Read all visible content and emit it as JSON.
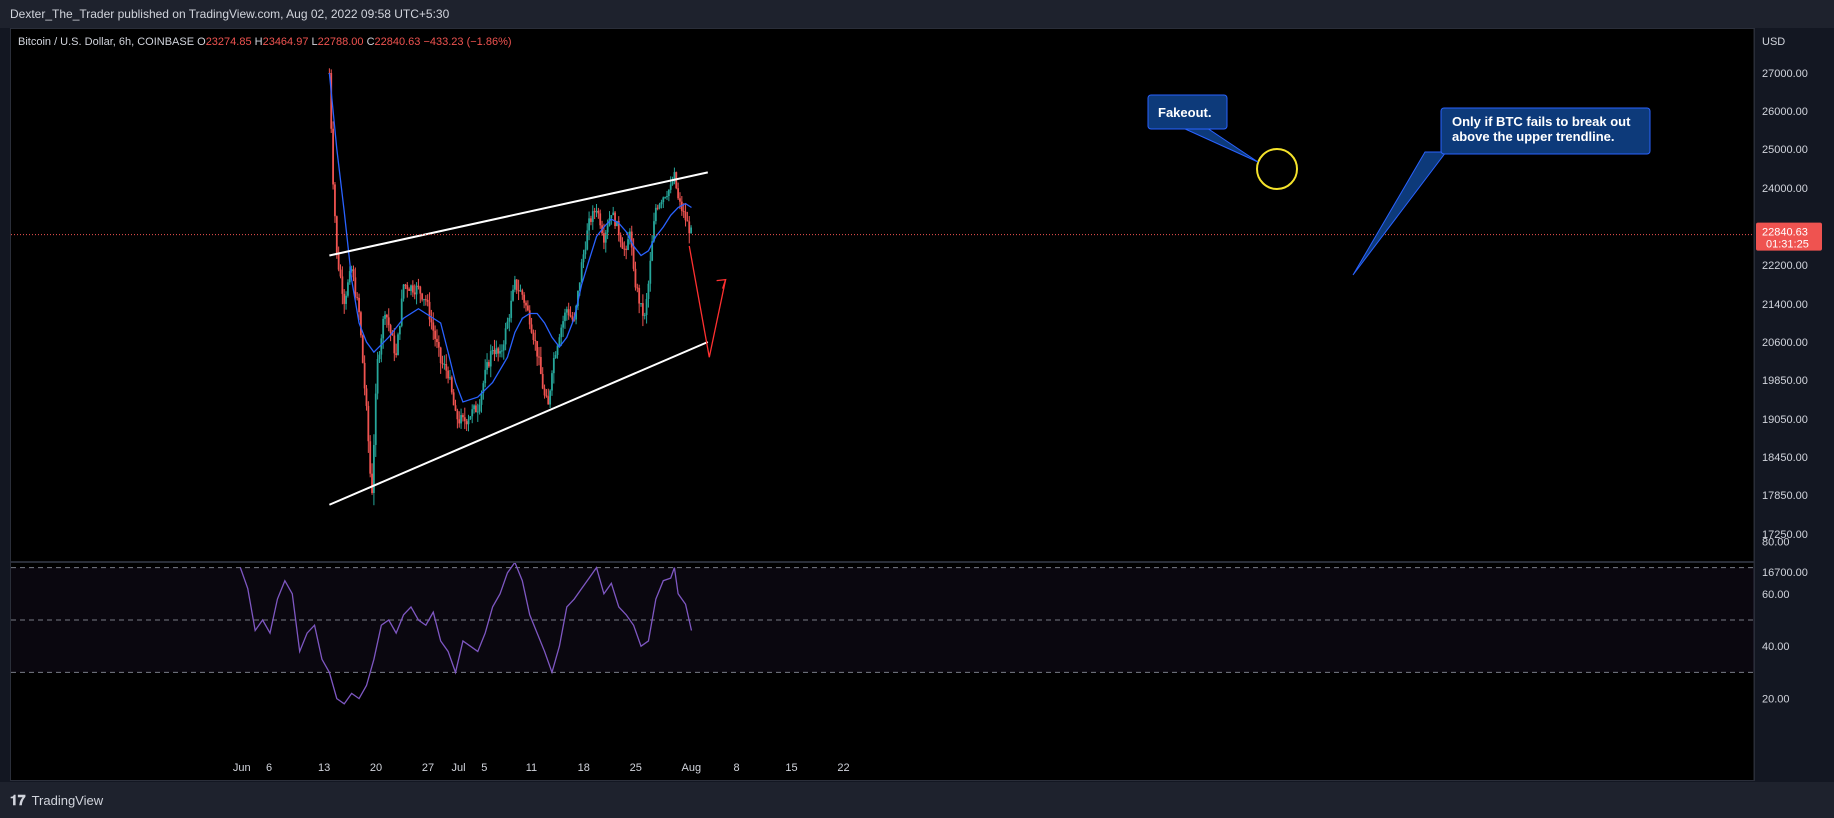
{
  "header": {
    "published": "Dexter_The_Trader published on TradingView.com, Aug 02, 2022 09:58 UTC+5:30"
  },
  "footer": {
    "brand": "TradingView",
    "logo_icon": "tradingview-logo-icon"
  },
  "symbol": {
    "name": "Bitcoin / U.S. Dollar, 6h, COINBASE",
    "o_label": "O",
    "o_value": "23274.85",
    "h_label": "H",
    "h_value": "23464.97",
    "l_label": "L",
    "l_value": "22788.00",
    "c_label": "C",
    "c_value": "22840.63",
    "change": "−433.23 (−1.86%)"
  },
  "price_tag": {
    "value": "22840.63",
    "countdown": "01:31:25"
  },
  "currency": "USD",
  "colors": {
    "up": "#26a69a",
    "down": "#ef5350",
    "ma": "#2962ff",
    "rsi": "#7e57c2",
    "trend": "#ffffff",
    "projection": "#ff3030",
    "callout": "#0d3a7a",
    "circle": "#f5e32b"
  },
  "annotations": {
    "fakeout": "Fakeout.",
    "note_line1": "Only if BTC fails to break out",
    "note_line2": "above the upper trendline."
  },
  "chart_data": [
    {
      "type": "candlestick",
      "title": "Bitcoin / U.S. Dollar, 6h, COINBASE",
      "y_axis_labels": [
        "27000.00",
        "26000.00",
        "25000.00",
        "24000.00",
        "23000.00",
        "22200.00",
        "21400.00",
        "20600.00",
        "19850.00",
        "19050.00",
        "18450.00",
        "17850.00",
        "17250.00",
        "16700.00"
      ],
      "x_axis_labels": [
        "Jun",
        "6",
        "13",
        "20",
        "27",
        "Jul",
        "5",
        "11",
        "18",
        "25",
        "Aug",
        "8",
        "15",
        "22"
      ],
      "close_path": [
        [
          13,
          27000
        ],
        [
          13.5,
          24200
        ],
        [
          14,
          22400
        ],
        [
          15,
          21500
        ],
        [
          16,
          22100
        ],
        [
          17,
          21200
        ],
        [
          18,
          19200
        ],
        [
          18.7,
          17800
        ],
        [
          19.5,
          20200
        ],
        [
          20.5,
          21300
        ],
        [
          22,
          20300
        ],
        [
          23,
          21800
        ],
        [
          25,
          21700
        ],
        [
          26,
          21500
        ],
        [
          28,
          20200
        ],
        [
          29,
          20000
        ],
        [
          30,
          19100
        ],
        [
          31,
          19000
        ],
        [
          33,
          19300
        ],
        [
          34,
          19950
        ],
        [
          35,
          20500
        ],
        [
          36,
          20300
        ],
        [
          37,
          21000
        ],
        [
          38,
          21800
        ],
        [
          39,
          21600
        ],
        [
          40,
          21100
        ],
        [
          41,
          20400
        ],
        [
          42,
          19500
        ],
        [
          42.5,
          19300
        ],
        [
          43,
          20100
        ],
        [
          44,
          20800
        ],
        [
          45,
          21300
        ],
        [
          46,
          21000
        ],
        [
          47,
          22200
        ],
        [
          48,
          23100
        ],
        [
          49,
          23500
        ],
        [
          50,
          22800
        ],
        [
          51,
          23400
        ],
        [
          52,
          22900
        ],
        [
          53,
          22400
        ],
        [
          53.5,
          23000
        ],
        [
          54,
          22000
        ],
        [
          55,
          21300
        ],
        [
          55.5,
          21100
        ],
        [
          56,
          21800
        ],
        [
          57,
          23500
        ],
        [
          58,
          23800
        ],
        [
          59,
          24000
        ],
        [
          59.5,
          24300
        ],
        [
          60,
          23700
        ],
        [
          61,
          23200
        ],
        [
          61.8,
          22840
        ]
      ],
      "ma_path": [
        [
          13,
          27000
        ],
        [
          14,
          25000
        ],
        [
          15,
          23400
        ],
        [
          16,
          21900
        ],
        [
          17,
          21000
        ],
        [
          18,
          20600
        ],
        [
          19,
          20400
        ],
        [
          21,
          20700
        ],
        [
          23,
          21100
        ],
        [
          25,
          21300
        ],
        [
          26,
          21200
        ],
        [
          28,
          21000
        ],
        [
          29,
          20400
        ],
        [
          30,
          19800
        ],
        [
          31,
          19400
        ],
        [
          33,
          19500
        ],
        [
          35,
          19800
        ],
        [
          37,
          20300
        ],
        [
          38,
          20800
        ],
        [
          39,
          21100
        ],
        [
          40,
          21200
        ],
        [
          41,
          21200
        ],
        [
          42,
          21000
        ],
        [
          43,
          20700
        ],
        [
          44,
          20500
        ],
        [
          45,
          20700
        ],
        [
          46,
          21100
        ],
        [
          47,
          21800
        ],
        [
          48,
          22300
        ],
        [
          49,
          22800
        ],
        [
          50,
          23000
        ],
        [
          51,
          23200
        ],
        [
          52,
          23100
        ],
        [
          53,
          22900
        ],
        [
          54,
          22600
        ],
        [
          55,
          22400
        ],
        [
          56,
          22500
        ],
        [
          57,
          22800
        ],
        [
          58,
          23000
        ],
        [
          59,
          23300
        ],
        [
          60,
          23500
        ],
        [
          61,
          23600
        ],
        [
          61.8,
          23500
        ]
      ],
      "trendlines": [
        {
          "name": "upper-trendline",
          "points": [
            [
              13,
              22400
            ],
            [
              64,
              24400
            ]
          ]
        },
        {
          "name": "lower-trendline",
          "points": [
            [
              13,
              17700
            ],
            [
              64,
              20600
            ]
          ]
        }
      ],
      "projection": [
        [
          61.5,
          22600
        ],
        [
          64.2,
          20300
        ],
        [
          66.4,
          21900
        ]
      ]
    },
    {
      "type": "line",
      "name": "RSI",
      "y_axis_labels": [
        "80.00",
        "60.00",
        "40.00",
        "20.00"
      ],
      "bands": [
        70,
        50,
        30
      ],
      "values": [
        [
          1,
          70
        ],
        [
          2,
          62
        ],
        [
          3,
          46
        ],
        [
          4,
          50
        ],
        [
          5,
          45
        ],
        [
          6,
          58
        ],
        [
          7,
          65
        ],
        [
          8,
          60
        ],
        [
          9,
          38
        ],
        [
          10,
          45
        ],
        [
          11,
          48
        ],
        [
          12,
          35
        ],
        [
          13,
          30
        ],
        [
          14,
          20
        ],
        [
          15,
          18
        ],
        [
          16,
          22
        ],
        [
          17,
          20
        ],
        [
          18,
          25
        ],
        [
          19,
          35
        ],
        [
          20,
          48
        ],
        [
          21,
          50
        ],
        [
          22,
          45
        ],
        [
          23,
          52
        ],
        [
          24,
          55
        ],
        [
          25,
          50
        ],
        [
          26,
          48
        ],
        [
          27,
          53
        ],
        [
          28,
          42
        ],
        [
          29,
          38
        ],
        [
          30,
          30
        ],
        [
          31,
          42
        ],
        [
          32,
          40
        ],
        [
          33,
          38
        ],
        [
          34,
          45
        ],
        [
          35,
          55
        ],
        [
          36,
          60
        ],
        [
          37,
          68
        ],
        [
          38,
          72
        ],
        [
          39,
          65
        ],
        [
          40,
          52
        ],
        [
          41,
          45
        ],
        [
          42,
          38
        ],
        [
          43,
          30
        ],
        [
          44,
          40
        ],
        [
          45,
          55
        ],
        [
          46,
          58
        ],
        [
          47,
          62
        ],
        [
          48,
          66
        ],
        [
          49,
          70
        ],
        [
          50,
          60
        ],
        [
          51,
          64
        ],
        [
          52,
          55
        ],
        [
          53,
          52
        ],
        [
          54,
          48
        ],
        [
          55,
          40
        ],
        [
          56,
          42
        ],
        [
          57,
          58
        ],
        [
          58,
          65
        ],
        [
          59,
          66
        ],
        [
          59.5,
          70
        ],
        [
          60,
          60
        ],
        [
          61,
          56
        ],
        [
          61.8,
          46
        ]
      ]
    }
  ]
}
